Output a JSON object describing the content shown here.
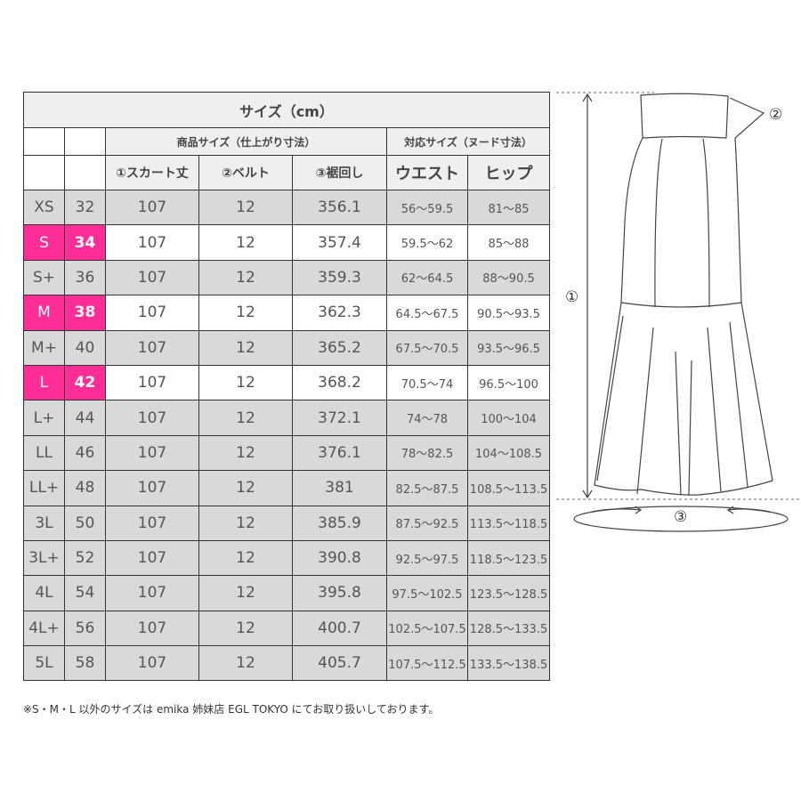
{
  "title": "サイズ（cm）",
  "group_headers": {
    "product": "商品サイズ（仕上がり寸法）",
    "nude": "対応サイズ（ヌード寸法）"
  },
  "columns": [
    "①スカート丈",
    "②ベルト",
    "③裾回し",
    "ウエスト",
    "ヒップ"
  ],
  "rows": [
    {
      "size": "XS",
      "num": "32",
      "length": "107",
      "belt": "12",
      "hem": "356.1",
      "waist": "56～59.5",
      "hip": "81～85",
      "highlight": false
    },
    {
      "size": "S",
      "num": "34",
      "length": "107",
      "belt": "12",
      "hem": "357.4",
      "waist": "59.5～62",
      "hip": "85～88",
      "highlight": true
    },
    {
      "size": "S+",
      "num": "36",
      "length": "107",
      "belt": "12",
      "hem": "359.3",
      "waist": "62～64.5",
      "hip": "88～90.5",
      "highlight": false
    },
    {
      "size": "M",
      "num": "38",
      "length": "107",
      "belt": "12",
      "hem": "362.3",
      "waist": "64.5～67.5",
      "hip": "90.5～93.5",
      "highlight": true
    },
    {
      "size": "M+",
      "num": "40",
      "length": "107",
      "belt": "12",
      "hem": "365.2",
      "waist": "67.5～70.5",
      "hip": "93.5～96.5",
      "highlight": false
    },
    {
      "size": "L",
      "num": "42",
      "length": "107",
      "belt": "12",
      "hem": "368.2",
      "waist": "70.5～74",
      "hip": "96.5～100",
      "highlight": true
    },
    {
      "size": "L+",
      "num": "44",
      "length": "107",
      "belt": "12",
      "hem": "372.1",
      "waist": "74～78",
      "hip": "100～104",
      "highlight": false
    },
    {
      "size": "LL",
      "num": "46",
      "length": "107",
      "belt": "12",
      "hem": "376.1",
      "waist": "78～82.5",
      "hip": "104～108.5",
      "highlight": false
    },
    {
      "size": "LL+",
      "num": "48",
      "length": "107",
      "belt": "12",
      "hem": "381",
      "waist": "82.5～87.5",
      "hip": "108.5～113.5",
      "highlight": false
    },
    {
      "size": "3L",
      "num": "50",
      "length": "107",
      "belt": "12",
      "hem": "385.9",
      "waist": "87.5～92.5",
      "hip": "113.5～118.5",
      "highlight": false
    },
    {
      "size": "3L+",
      "num": "52",
      "length": "107",
      "belt": "12",
      "hem": "390.8",
      "waist": "92.5～97.5",
      "hip": "118.5～123.5",
      "highlight": false
    },
    {
      "size": "4L",
      "num": "54",
      "length": "107",
      "belt": "12",
      "hem": "395.8",
      "waist": "97.5～102.5",
      "hip": "123.5～128.5",
      "highlight": false
    },
    {
      "size": "4L+",
      "num": "56",
      "length": "107",
      "belt": "12",
      "hem": "400.7",
      "waist": "102.5～107.5",
      "hip": "128.5～133.5",
      "highlight": false
    },
    {
      "size": "5L",
      "num": "58",
      "length": "107",
      "belt": "12",
      "hem": "405.7",
      "waist": "107.5～112.5",
      "hip": "133.5～138.5",
      "highlight": false
    }
  ],
  "note": "※S・M・L 以外のサイズは emika 姉妹店 EGL TOKYO にてお取り扱いしております。",
  "diagram": {
    "label_length": "①",
    "label_belt": "②",
    "label_hem": "③"
  },
  "colors": {
    "highlight": "#ff2d95",
    "row_gray": "#d9d9d9",
    "header_gray": "#efefef"
  }
}
